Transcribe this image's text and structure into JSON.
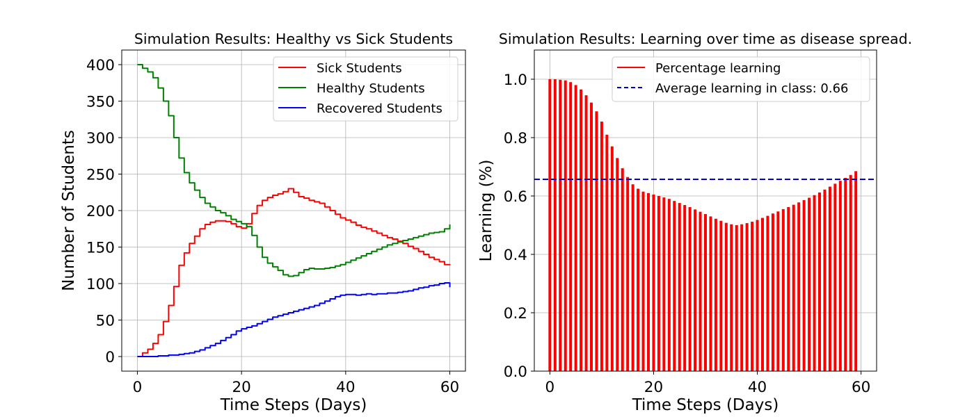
{
  "chart_data": [
    {
      "type": "line",
      "title": "Simulation Results: Healthy vs Sick Students",
      "xlabel": "Time Steps (Days)",
      "ylabel": "Number of Students",
      "xlim": [
        -3,
        63
      ],
      "ylim": [
        -20,
        420
      ],
      "xticks": [
        0,
        20,
        40,
        60
      ],
      "yticks": [
        0,
        50,
        100,
        150,
        200,
        250,
        300,
        350,
        400
      ],
      "grid": true,
      "legend_position": "top-right",
      "series": [
        {
          "name": "Sick Students",
          "color": "#ff0000",
          "x": [
            0,
            1,
            2,
            3,
            4,
            5,
            6,
            7,
            8,
            9,
            10,
            11,
            12,
            13,
            14,
            15,
            16,
            17,
            18,
            19,
            20,
            21,
            22,
            23,
            24,
            25,
            26,
            27,
            28,
            29,
            30,
            31,
            32,
            33,
            34,
            35,
            36,
            37,
            38,
            39,
            40,
            41,
            42,
            43,
            44,
            45,
            46,
            47,
            48,
            49,
            50,
            51,
            52,
            53,
            54,
            55,
            56,
            57,
            58,
            59,
            60
          ],
          "values": [
            0,
            5,
            10,
            18,
            30,
            48,
            70,
            96,
            125,
            142,
            155,
            165,
            175,
            181,
            184,
            186,
            186,
            185,
            182,
            178,
            176,
            182,
            196,
            207,
            214,
            218,
            221,
            223,
            226,
            230,
            225,
            219,
            217,
            214,
            212,
            210,
            205,
            200,
            195,
            190,
            187,
            184,
            180,
            177,
            175,
            172,
            169,
            166,
            163,
            161,
            158,
            155,
            151,
            148,
            144,
            140,
            136,
            133,
            130,
            126,
            125
          ]
        },
        {
          "name": "Healthy Students",
          "color": "#008000",
          "x": [
            0,
            1,
            2,
            3,
            4,
            5,
            6,
            7,
            8,
            9,
            10,
            11,
            12,
            13,
            14,
            15,
            16,
            17,
            18,
            19,
            20,
            21,
            22,
            23,
            24,
            25,
            26,
            27,
            28,
            29,
            30,
            31,
            32,
            33,
            34,
            35,
            36,
            37,
            38,
            39,
            40,
            41,
            42,
            43,
            44,
            45,
            46,
            47,
            48,
            49,
            50,
            51,
            52,
            53,
            54,
            55,
            56,
            57,
            58,
            59,
            60
          ],
          "values": [
            400,
            395,
            390,
            382,
            368,
            350,
            330,
            300,
            272,
            252,
            238,
            228,
            218,
            210,
            205,
            200,
            197,
            193,
            188,
            185,
            182,
            178,
            166,
            150,
            136,
            128,
            123,
            118,
            112,
            110,
            111,
            115,
            119,
            121,
            120,
            120,
            121,
            122,
            124,
            126,
            129,
            132,
            135,
            138,
            141,
            144,
            147,
            150,
            153,
            155,
            157,
            159,
            161,
            163,
            165,
            167,
            169,
            170,
            171,
            175,
            181
          ]
        },
        {
          "name": "Recovered Students",
          "color": "#0000ff",
          "x": [
            0,
            1,
            2,
            3,
            4,
            5,
            6,
            7,
            8,
            9,
            10,
            11,
            12,
            13,
            14,
            15,
            16,
            17,
            18,
            19,
            20,
            21,
            22,
            23,
            24,
            25,
            26,
            27,
            28,
            29,
            30,
            31,
            32,
            33,
            34,
            35,
            36,
            37,
            38,
            39,
            40,
            41,
            42,
            43,
            44,
            45,
            46,
            47,
            48,
            49,
            50,
            51,
            52,
            53,
            54,
            55,
            56,
            57,
            58,
            59,
            60
          ],
          "values": [
            0,
            0,
            0,
            0,
            1,
            1,
            2,
            2,
            3,
            4,
            5,
            7,
            9,
            12,
            15,
            18,
            22,
            26,
            30,
            35,
            38,
            40,
            42,
            45,
            48,
            51,
            54,
            56,
            58,
            60,
            62,
            64,
            66,
            68,
            70,
            73,
            76,
            79,
            82,
            84,
            85,
            85,
            84,
            85,
            86,
            85,
            86,
            86,
            87,
            87,
            88,
            89,
            90,
            92,
            94,
            95,
            97,
            98,
            100,
            101,
            95
          ]
        }
      ]
    },
    {
      "type": "bar",
      "title": "Simulation Results: Learning over time as disease spread.",
      "xlabel": "Time Steps (Days)",
      "ylabel": "Learning (%)",
      "xlim": [
        -3,
        63
      ],
      "ylim": [
        0,
        1.1
      ],
      "xticks": [
        0,
        20,
        40,
        60
      ],
      "yticks": [
        0.0,
        0.2,
        0.4,
        0.6,
        0.8,
        1.0
      ],
      "ytick_labels": [
        "0.0",
        "0.2",
        "0.4",
        "0.6",
        "0.8",
        "1.0"
      ],
      "grid": true,
      "legend_position": "top-right",
      "bar_color": "#ff0000",
      "bar_series_name": "Percentage learning",
      "x": [
        0,
        1,
        2,
        3,
        4,
        5,
        6,
        7,
        8,
        9,
        10,
        11,
        12,
        13,
        14,
        15,
        16,
        17,
        18,
        19,
        20,
        21,
        22,
        23,
        24,
        25,
        26,
        27,
        28,
        29,
        30,
        31,
        32,
        33,
        34,
        35,
        36,
        37,
        38,
        39,
        40,
        41,
        42,
        43,
        44,
        45,
        46,
        47,
        48,
        49,
        50,
        51,
        52,
        53,
        54,
        55,
        56,
        57,
        58,
        59
      ],
      "values": [
        1.0,
        1.0,
        0.998,
        0.996,
        0.99,
        0.98,
        0.965,
        0.945,
        0.92,
        0.89,
        0.855,
        0.81,
        0.77,
        0.73,
        0.695,
        0.665,
        0.64,
        0.625,
        0.615,
        0.61,
        0.605,
        0.6,
        0.595,
        0.59,
        0.583,
        0.576,
        0.569,
        0.562,
        0.554,
        0.546,
        0.538,
        0.53,
        0.522,
        0.515,
        0.508,
        0.503,
        0.5,
        0.503,
        0.507,
        0.512,
        0.518,
        0.525,
        0.532,
        0.54,
        0.547,
        0.555,
        0.562,
        0.57,
        0.578,
        0.586,
        0.594,
        0.603,
        0.612,
        0.622,
        0.632,
        0.642,
        0.652,
        0.662,
        0.672,
        0.685
      ],
      "average": {
        "name": "Average learning in class: 0.66",
        "value": 0.657,
        "color": "#0000cc"
      }
    }
  ]
}
